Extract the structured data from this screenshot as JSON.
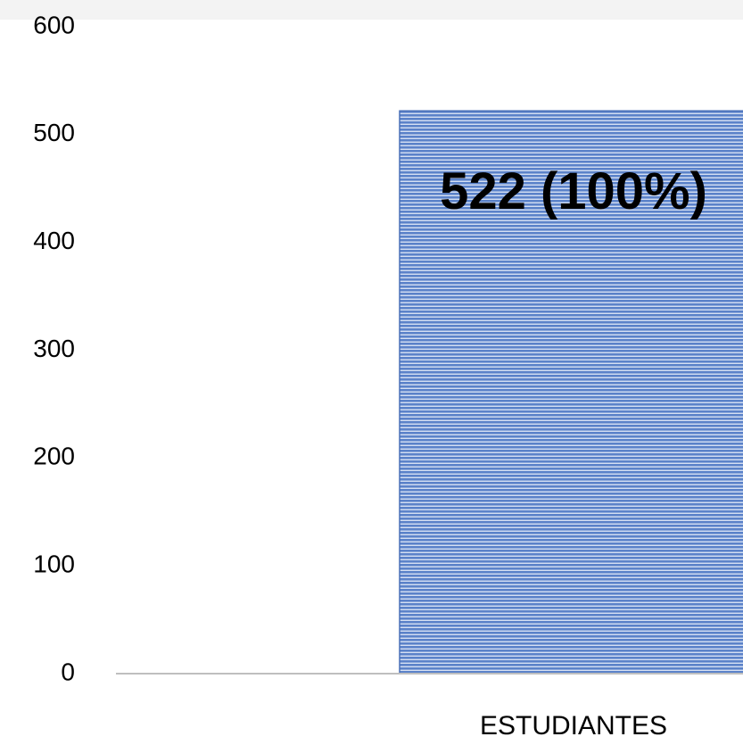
{
  "chart_data": {
    "type": "bar",
    "categories": [
      "ESTUDIANTES"
    ],
    "values": [
      522
    ],
    "value_labels": [
      "522 (100%)"
    ],
    "color": "#5b82c9",
    "ylim": [
      0,
      600
    ],
    "yticks": [
      0,
      100,
      200,
      300,
      400,
      500,
      600
    ],
    "grid": false
  }
}
